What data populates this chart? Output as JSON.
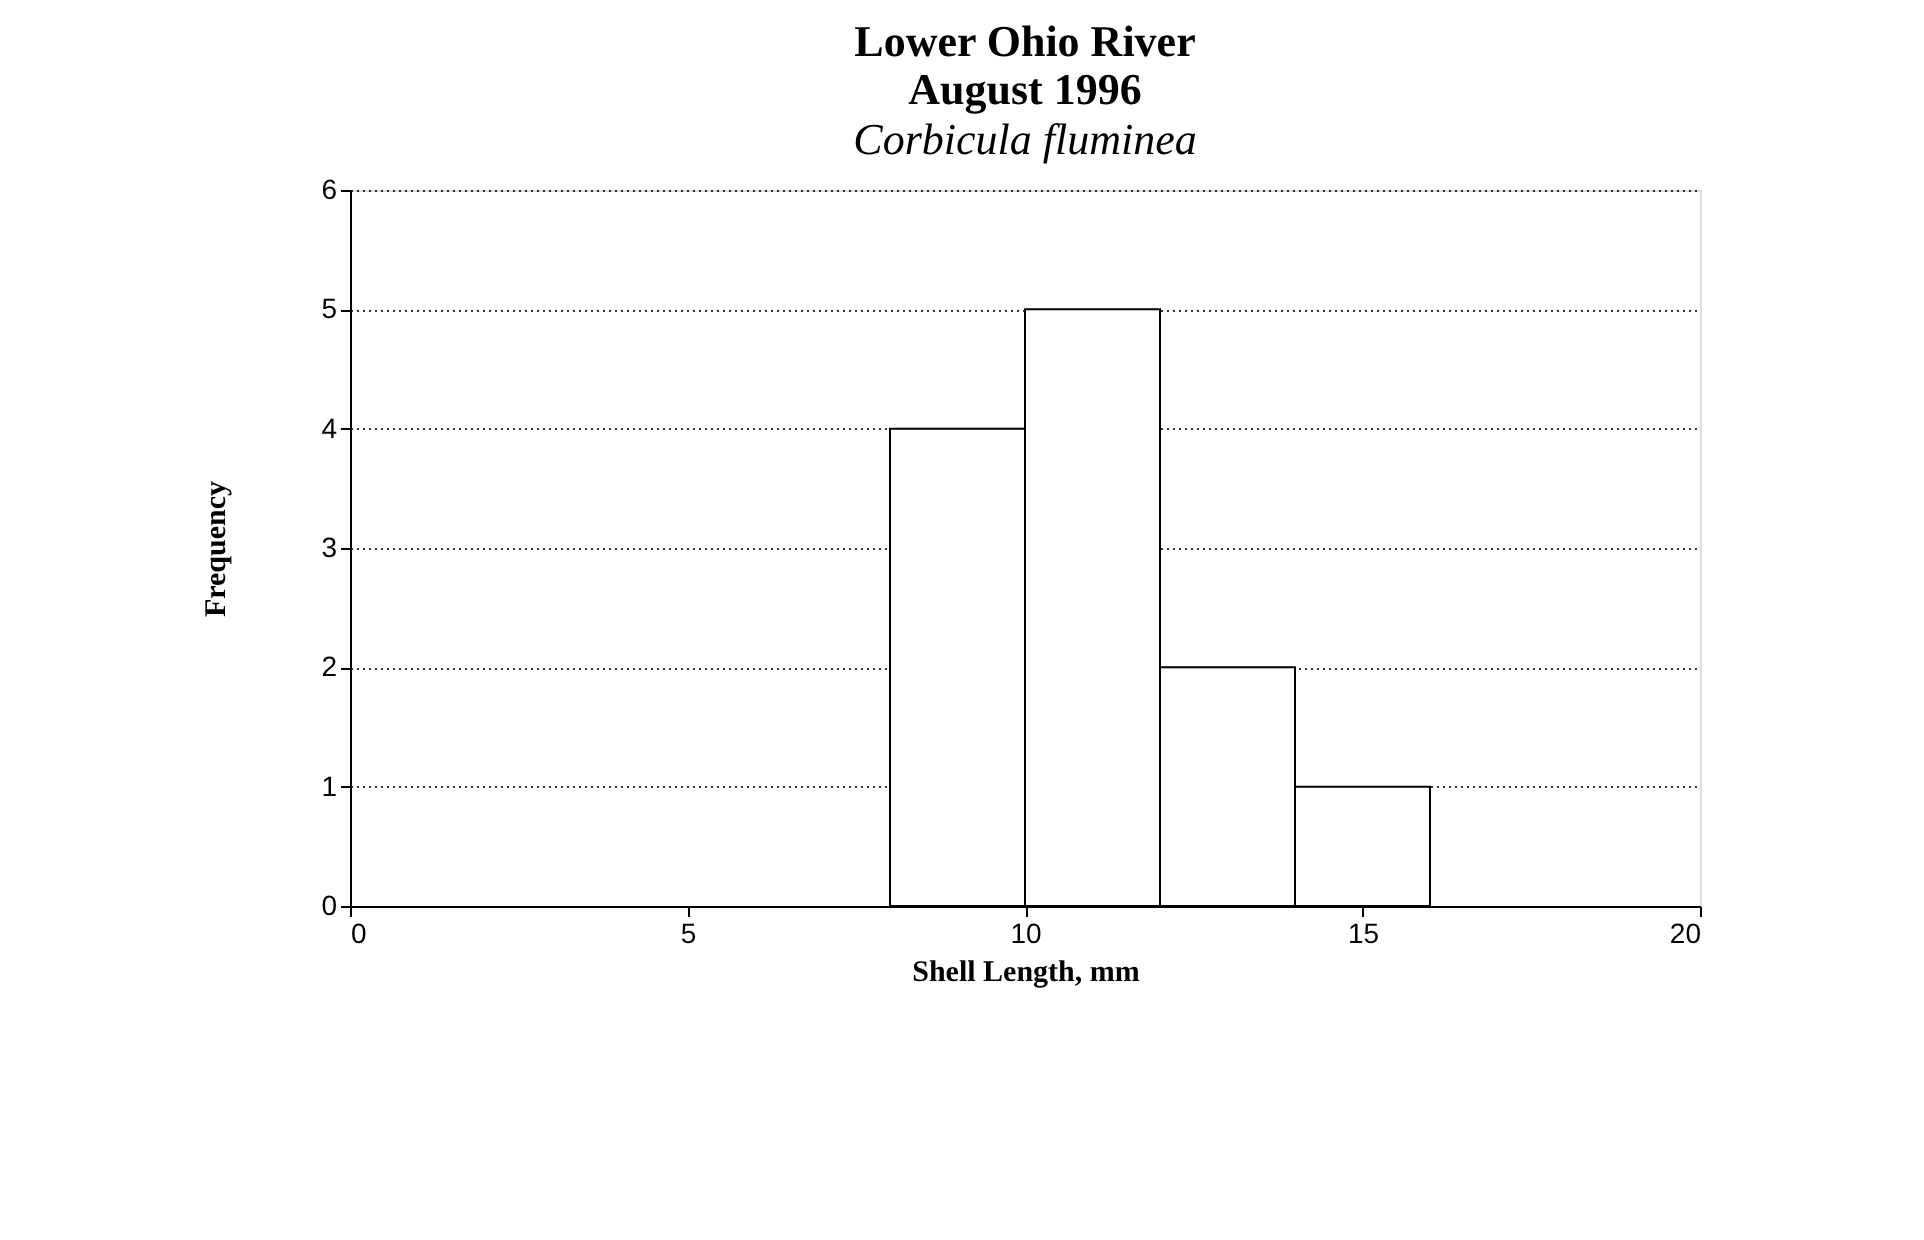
{
  "chart_data": {
    "type": "histogram",
    "title": "Lower Ohio River\nAugust 1996",
    "subtitle": "Corbicula fluminea",
    "xlabel": "Shell Length, mm",
    "ylabel": "Frequency",
    "bins": [
      8,
      10,
      12,
      14,
      16
    ],
    "values": [
      4,
      5,
      2,
      1
    ],
    "color": "#ffffff",
    "xlim": [
      0,
      20
    ],
    "xticks": [
      0,
      5,
      10,
      15,
      20
    ],
    "ylim": [
      0,
      6
    ],
    "yticks": [
      0,
      1,
      2,
      3,
      4,
      5,
      6
    ],
    "grid": "y"
  }
}
